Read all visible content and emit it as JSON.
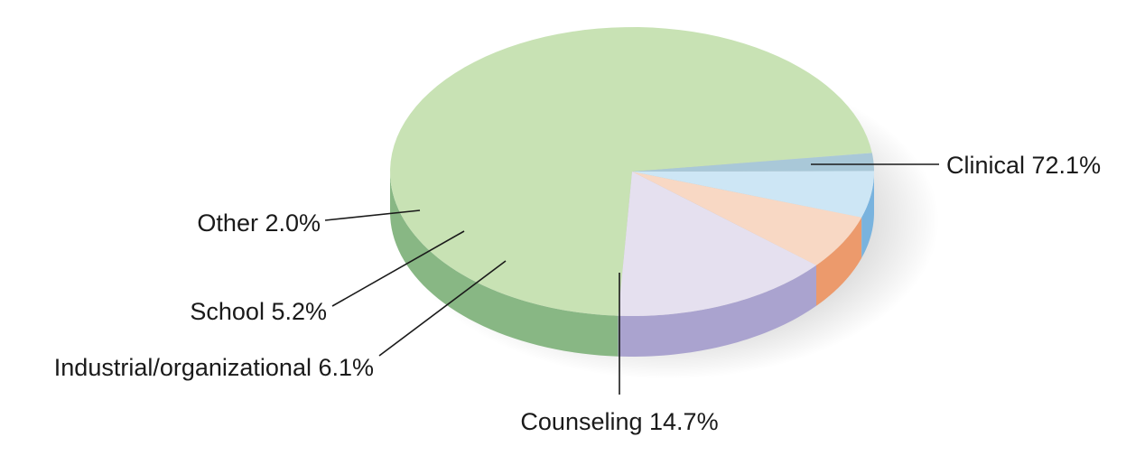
{
  "chart_data": {
    "type": "pie",
    "title": "",
    "style": "3d-exploded-depth",
    "unit": "%",
    "slices": [
      {
        "label": "Clinical",
        "value": 72.1,
        "display": "Clinical 72.1%",
        "color_top": "#c8e2b4",
        "color_side": "#88b784"
      },
      {
        "label": "Counseling",
        "value": 14.7,
        "display": "Counseling 14.7%",
        "color_top": "#e5e0ef",
        "color_side": "#aaa3cf"
      },
      {
        "label": "Industrial/organizational",
        "value": 6.1,
        "display": "Industrial/organizational 6.1%",
        "color_top": "#f8d8c4",
        "color_side": "#ec9a6c"
      },
      {
        "label": "School",
        "value": 5.2,
        "display": "School 5.2%",
        "color_top": "#cde6f5",
        "color_side": "#79b3de"
      },
      {
        "label": "Other",
        "value": 2.0,
        "display": "Other 2.0%",
        "color_top": "#a9c8d8",
        "color_side": "#2f7192"
      }
    ]
  }
}
